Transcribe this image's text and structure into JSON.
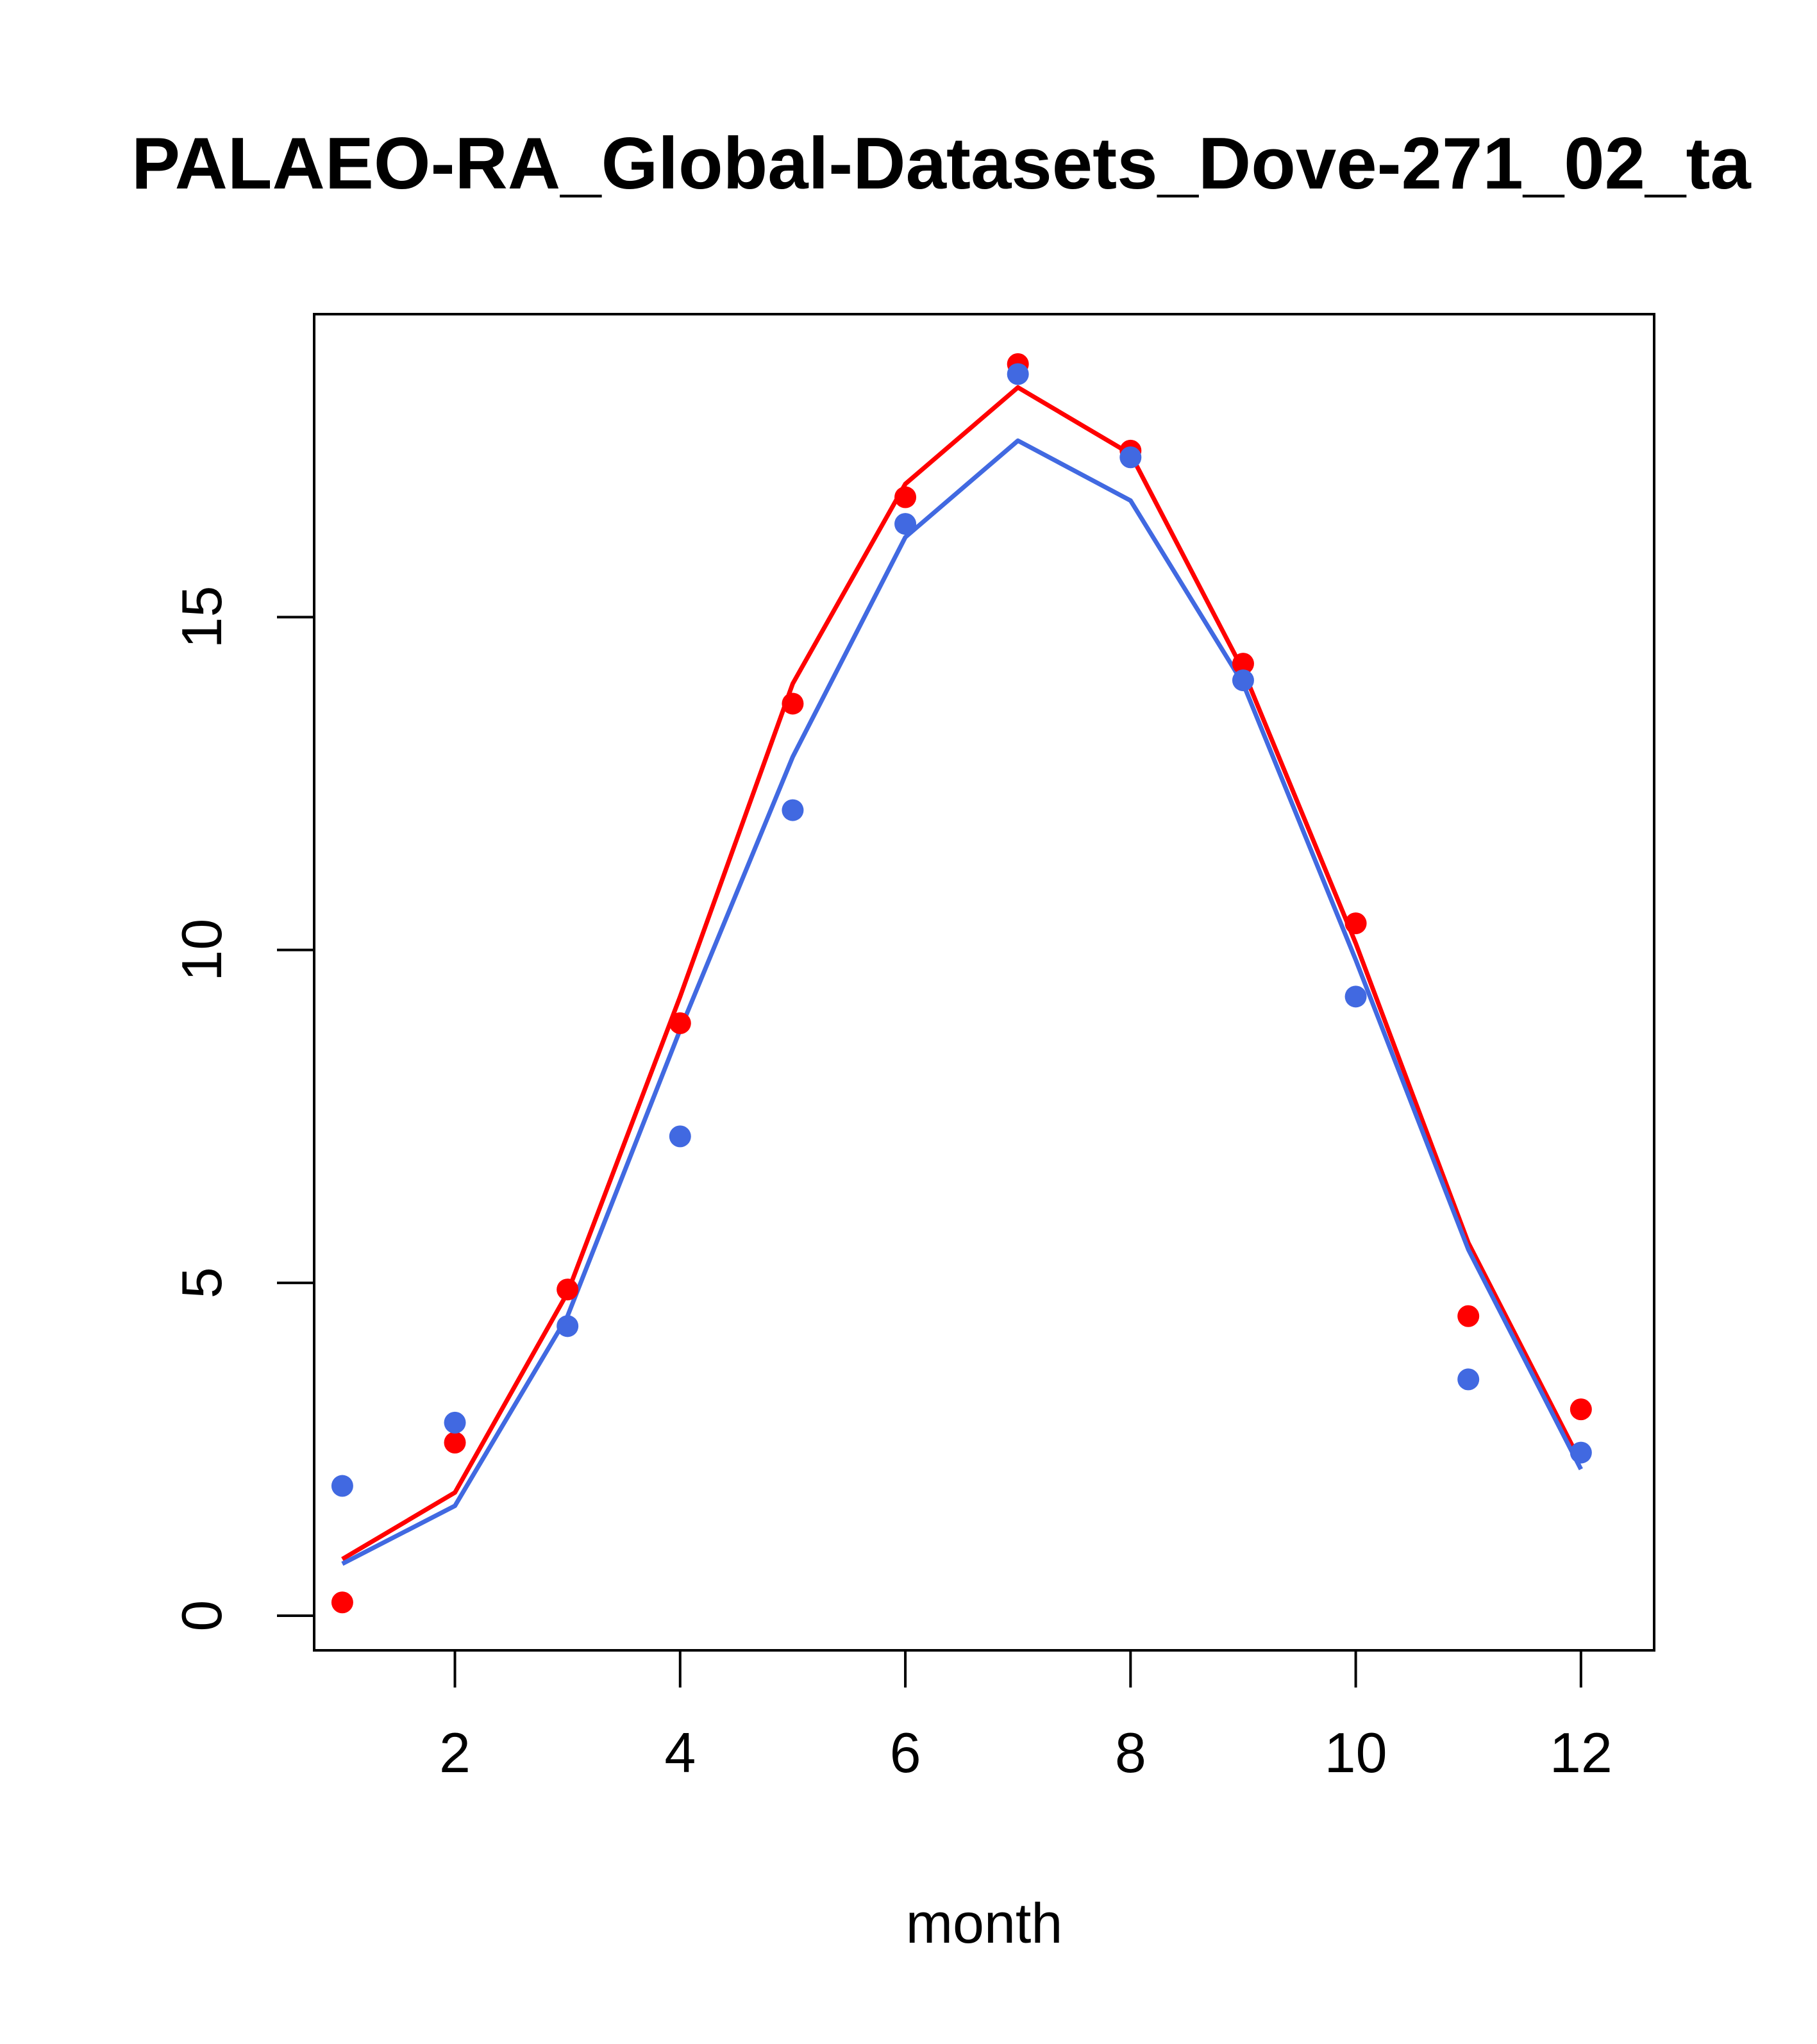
{
  "chart_data": {
    "type": "line",
    "title": "PALAEO-RA_Global-Datasets_Dove-271_02_ta",
    "xlabel": "month",
    "ylabel": "",
    "xlim": [
      0.75,
      12.65
    ],
    "ylim": [
      -0.52,
      19.55
    ],
    "x_ticks": [
      "2",
      "4",
      "6",
      "8",
      "10",
      "12"
    ],
    "y_ticks": [
      "0",
      "5",
      "10",
      "15"
    ],
    "x": [
      1,
      2,
      3,
      4,
      5,
      6,
      7,
      8,
      9,
      10,
      11,
      12
    ],
    "grid": false,
    "legend": "none",
    "series": [
      {
        "color": "#ff0000",
        "points": [
          0.2,
          2.6,
          4.9,
          8.9,
          13.7,
          16.8,
          18.8,
          17.5,
          14.3,
          10.4,
          4.5,
          3.1
        ],
        "line": [
          0.85,
          1.85,
          4.85,
          9.3,
          14.0,
          17.0,
          18.45,
          17.45,
          14.2,
          10.1,
          5.6,
          2.3
        ]
      },
      {
        "color": "#4169e1",
        "points": [
          1.95,
          2.9,
          4.35,
          7.2,
          12.1,
          16.4,
          18.65,
          17.4,
          14.05,
          9.3,
          3.55,
          2.45
        ],
        "line": [
          0.78,
          1.65,
          4.5,
          8.8,
          12.9,
          16.2,
          17.65,
          16.75,
          14.0,
          9.85,
          5.5,
          2.2
        ]
      }
    ]
  }
}
